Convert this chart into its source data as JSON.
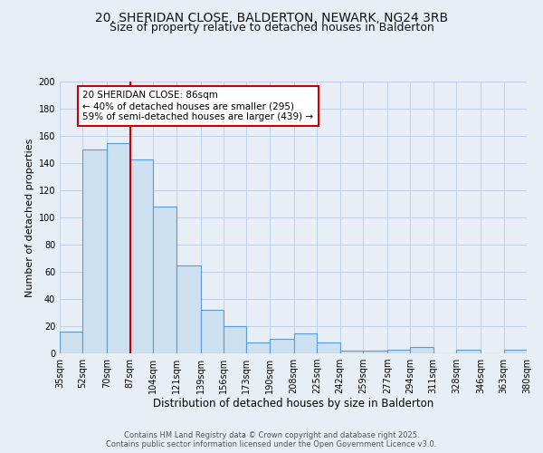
{
  "title": "20, SHERIDAN CLOSE, BALDERTON, NEWARK, NG24 3RB",
  "subtitle": "Size of property relative to detached houses in Balderton",
  "xlabel": "Distribution of detached houses by size in Balderton",
  "ylabel": "Number of detached properties",
  "bar_values": [
    16,
    150,
    155,
    143,
    108,
    65,
    32,
    20,
    8,
    11,
    15,
    8,
    2,
    2,
    3,
    5,
    0,
    3,
    0,
    3
  ],
  "bin_edges": [
    35,
    52,
    70,
    87,
    104,
    121,
    139,
    156,
    173,
    190,
    208,
    225,
    242,
    259,
    277,
    294,
    311,
    328,
    346,
    363,
    380
  ],
  "tick_labels": [
    "35sqm",
    "52sqm",
    "70sqm",
    "87sqm",
    "104sqm",
    "121sqm",
    "139sqm",
    "156sqm",
    "173sqm",
    "190sqm",
    "208sqm",
    "225sqm",
    "242sqm",
    "259sqm",
    "277sqm",
    "294sqm",
    "311sqm",
    "328sqm",
    "346sqm",
    "363sqm",
    "380sqm"
  ],
  "bar_face_color": "#cce0f0",
  "bar_edge_color": "#5b9bd5",
  "vline_x": 87,
  "vline_color": "#cc0000",
  "annotation_title": "20 SHERIDAN CLOSE: 86sqm",
  "annotation_line1": "← 40% of detached houses are smaller (295)",
  "annotation_line2": "59% of semi-detached houses are larger (439) →",
  "annotation_box_color": "#ffffff",
  "annotation_box_edge": "#cc0000",
  "ylim": [
    0,
    200
  ],
  "yticks": [
    0,
    20,
    40,
    60,
    80,
    100,
    120,
    140,
    160,
    180,
    200
  ],
  "grid_color": "#c0d0e8",
  "background_color": "#e8eef6",
  "footer1": "Contains HM Land Registry data © Crown copyright and database right 2025.",
  "footer2": "Contains public sector information licensed under the Open Government Licence v3.0.",
  "title_fontsize": 10,
  "subtitle_fontsize": 9,
  "xlabel_fontsize": 8.5,
  "ylabel_fontsize": 8,
  "tick_fontsize": 7,
  "footer_fontsize": 6,
  "ann_fontsize": 7.5
}
